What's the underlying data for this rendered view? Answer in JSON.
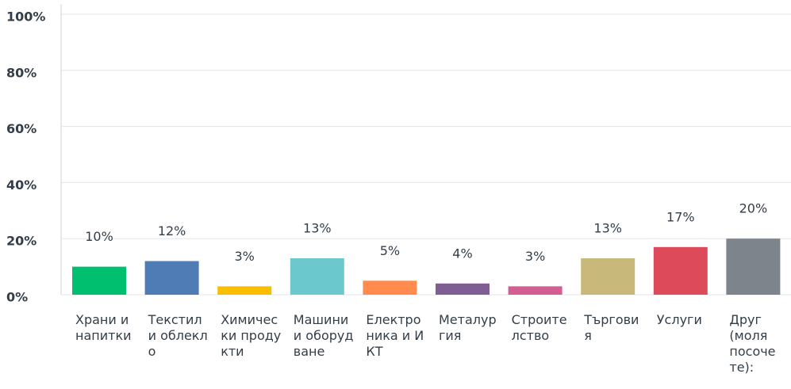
{
  "chart_data": {
    "type": "bar",
    "categories": [
      "Храни и напитки",
      "Текстил и облекло",
      "Химически продукти",
      "Машини и оборудване",
      "Електроника и ИКТ",
      "Металургия",
      "Строителство",
      "Търговия",
      "Услуги",
      "Друг (моля посочете):"
    ],
    "values": [
      10,
      12,
      3,
      13,
      5,
      4,
      3,
      13,
      17,
      20
    ],
    "value_labels": [
      "10%",
      "12%",
      "3%",
      "13%",
      "5%",
      "4%",
      "3%",
      "13%",
      "17%",
      "20%"
    ],
    "colors": [
      "#00bf6f",
      "#507cb6",
      "#f9be00",
      "#6bc8cd",
      "#ff8b4f",
      "#7f5e94",
      "#d25f90",
      "#c8b87a",
      "#dd4b5b",
      "#7d848b"
    ],
    "ylim": [
      0,
      100
    ],
    "yticks": [
      {
        "value": 0,
        "label": "0%"
      },
      {
        "value": 20,
        "label": "20%"
      },
      {
        "value": 40,
        "label": "40%"
      },
      {
        "value": 60,
        "label": "60%"
      },
      {
        "value": 80,
        "label": "80%"
      },
      {
        "value": 100,
        "label": "100%"
      }
    ],
    "grid": true
  }
}
